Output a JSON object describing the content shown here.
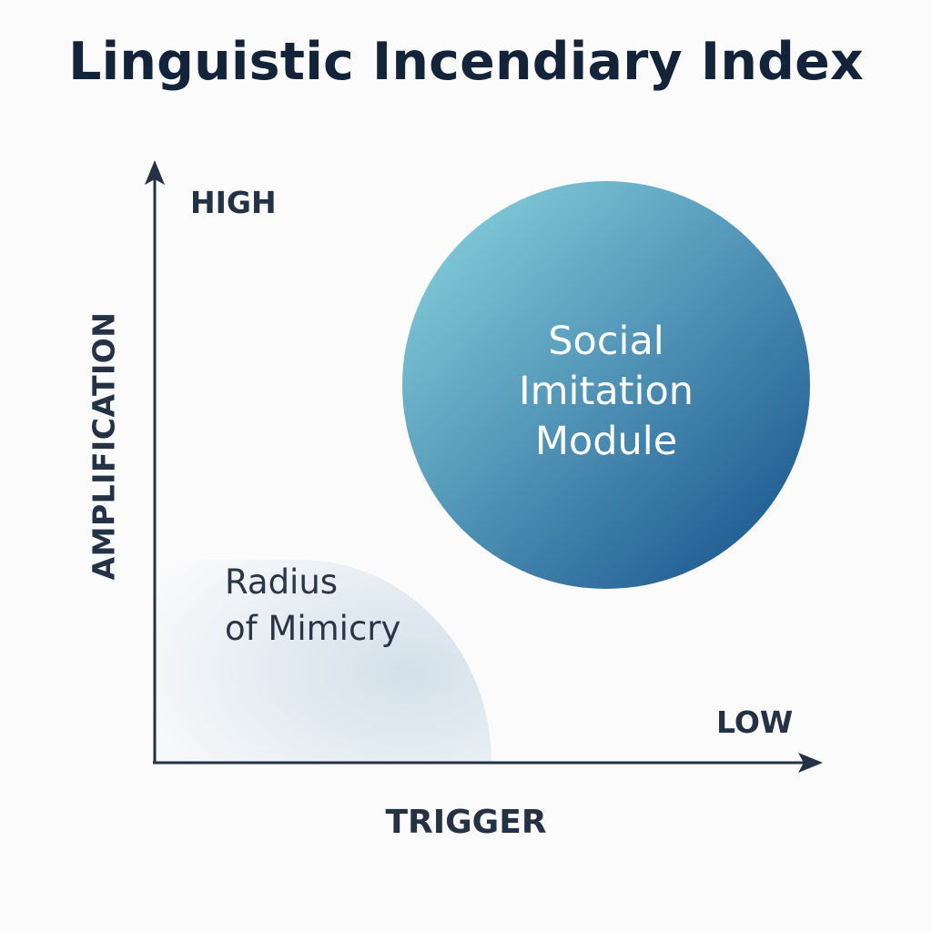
{
  "title": "Linguistic Incendiary Index",
  "axes": {
    "y_label": "AMPLIFICATION",
    "x_label": "TRIGGER",
    "y_high_label": "HIGH",
    "x_low_label": "LOW",
    "color": "#253246"
  },
  "nodes": {
    "social_imitation": {
      "lines": [
        "Social",
        "Imitation",
        "Module"
      ],
      "gradient_start": "#7ec6d6",
      "gradient_end": "#1f5c93"
    },
    "radius_of_mimicry": {
      "lines": [
        "Radius",
        "of Mimicry"
      ],
      "fill": "#dce6ee"
    }
  }
}
